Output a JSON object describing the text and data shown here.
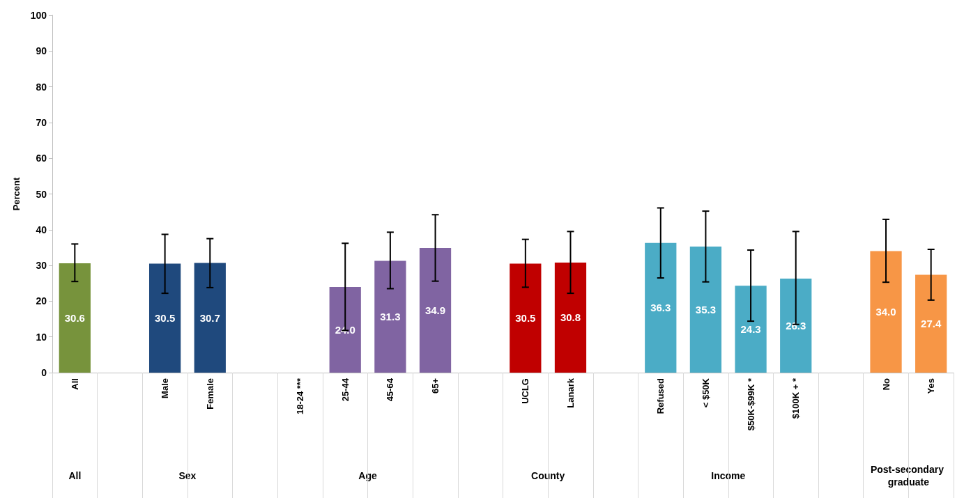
{
  "chart_data": {
    "type": "bar",
    "ylabel": "Percent",
    "categories": [
      "All",
      null,
      "Male",
      "Female",
      null,
      "18-24 ***",
      "25-44",
      "45-64",
      "65+",
      null,
      "UCLG",
      "Lanark",
      null,
      "Refused",
      "< $50K",
      "$50K-$99K *",
      "$100K + *",
      null,
      "No",
      "Yes"
    ],
    "values": [
      30.6,
      null,
      30.5,
      30.7,
      null,
      null,
      24.0,
      31.3,
      34.9,
      null,
      30.5,
      30.8,
      null,
      36.3,
      35.3,
      24.3,
      26.3,
      null,
      34.0,
      27.4
    ],
    "value_labels": [
      "30.6",
      null,
      "30.5",
      "30.7",
      null,
      null,
      "24.0",
      "31.3",
      "34.9",
      null,
      "30.5",
      "30.8",
      null,
      "36.3",
      "35.3",
      "24.3",
      "26.3",
      null,
      "34.0",
      "27.4"
    ],
    "colors": [
      "#77933c",
      null,
      "#1f497d",
      "#1f497d",
      null,
      "#8064a2",
      "#8064a2",
      "#8064a2",
      "#8064a2",
      null,
      "#c00000",
      "#c00000",
      null,
      "#4bacc6",
      "#4bacc6",
      "#4bacc6",
      "#4bacc6",
      null,
      "#f79646",
      "#f79646"
    ],
    "errors": [
      [
        25.5,
        36.0
      ],
      null,
      [
        22.2,
        38.7
      ],
      [
        23.8,
        37.5
      ],
      null,
      null,
      [
        11.8,
        36.2
      ],
      [
        23.5,
        39.3
      ],
      [
        25.6,
        44.2
      ],
      null,
      [
        23.9,
        37.3
      ],
      [
        22.2,
        39.5
      ],
      null,
      [
        26.5,
        46.1
      ],
      [
        25.4,
        45.2
      ],
      [
        14.4,
        34.3
      ],
      [
        13.5,
        39.5
      ],
      null,
      [
        25.3,
        42.9
      ],
      [
        20.3,
        34.5
      ]
    ],
    "ylim": [
      0,
      100
    ],
    "yticks": [
      0,
      10,
      20,
      30,
      40,
      50,
      60,
      70,
      80,
      90,
      100
    ],
    "grid": false,
    "annotations": [
      "All",
      "Sex",
      "Age",
      "County",
      "Income",
      "Post-secondary graduate"
    ]
  }
}
